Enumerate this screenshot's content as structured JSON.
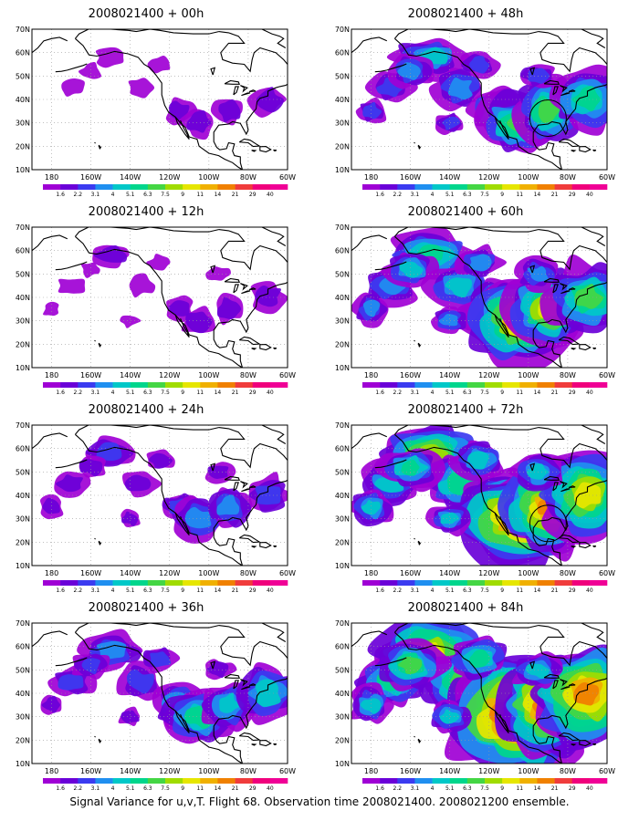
{
  "figure": {
    "caption": "Signal Variance for u,v,T. Flight 68. Observation time 2008021400. 2008021200 ensemble."
  },
  "axes": {
    "lat_labels": [
      "70N",
      "60N",
      "50N",
      "40N",
      "30N",
      "20N",
      "10N"
    ],
    "lon_labels": [
      "180",
      "160W",
      "140W",
      "120W",
      "100W",
      "80W",
      "60W"
    ]
  },
  "colorbar": {
    "labels": [
      "1.6",
      "2.2",
      "3.1",
      "4",
      "5.1",
      "6.3",
      "7.5",
      "9",
      "11",
      "14",
      "21",
      "29",
      "40"
    ],
    "colors": [
      "#9f00d5",
      "#6a00d8",
      "#3b3bf0",
      "#1f8ff0",
      "#00c8c8",
      "#00d68c",
      "#44d644",
      "#a0dc00",
      "#e6e600",
      "#f0b000",
      "#f08000",
      "#f03c3c",
      "#f0007c",
      "#f00096"
    ]
  },
  "panels": [
    {
      "id": "p00",
      "title": "2008021400 + 00h",
      "intensity": 0.5,
      "circle": false
    },
    {
      "id": "p12",
      "title": "2008021400 + 12h",
      "intensity": 0.6,
      "circle": false
    },
    {
      "id": "p24",
      "title": "2008021400 + 24h",
      "intensity": 1.0,
      "circle": false
    },
    {
      "id": "p36",
      "title": "2008021400 + 36h",
      "intensity": 1.5,
      "circle": false
    },
    {
      "id": "p48",
      "title": "2008021400 + 48h",
      "intensity": 1.8,
      "circle": true
    },
    {
      "id": "p60",
      "title": "2008021400 + 60h",
      "intensity": 2.4,
      "circle": false
    },
    {
      "id": "p72",
      "title": "2008021400 + 72h",
      "intensity": 2.9,
      "circle": true
    },
    {
      "id": "p84",
      "title": "2008021400 + 84h",
      "intensity": 3.4,
      "circle": false
    }
  ]
}
